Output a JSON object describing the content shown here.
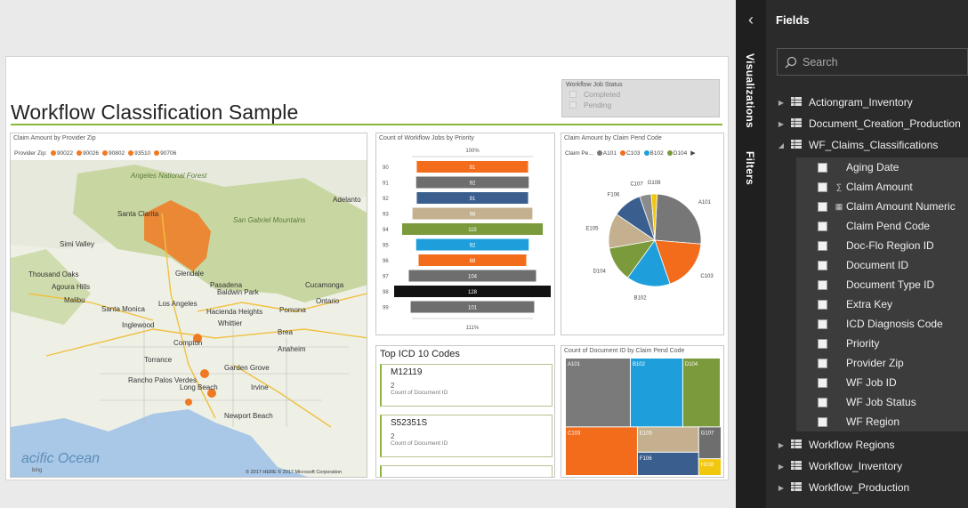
{
  "report": {
    "title": "Workflow Classification Sample",
    "slicer": {
      "title": "Workflow Job Status",
      "options": [
        "Completed",
        "Pending"
      ]
    }
  },
  "map_tile": {
    "title": "Claim Amount by Provider Zip",
    "legend_label": "Provider Zip",
    "legend_items": [
      "90022",
      "90026",
      "90802",
      "93510",
      "90706"
    ],
    "places": [
      "Adelanto",
      "Santa Clarita",
      "Simi Valley",
      "Thousand Oaks",
      "Agoura Hills",
      "Glendale",
      "Los Angeles",
      "Pasadena",
      "Baldwin Park",
      "Cucamonga",
      "Ontario",
      "Pomona",
      "Hacienda Heights",
      "Whittier",
      "Brea",
      "Compton",
      "Torrance",
      "Garden Grove",
      "Rancho Palos Verdes",
      "Long Beach",
      "Irvine",
      "Newport Beach",
      "Angeles National Forest",
      "San Gabriel Mountains",
      "Inglewood",
      "Santa Monica",
      "Malibu",
      "Anaheim"
    ],
    "ocean_label": "acific Ocean",
    "bing_label": "bing",
    "copyright": "© 2017 HERE  © 2017 Microsoft Corporation",
    "colors": {
      "accent": "#f07a23",
      "water": "#a9c7e6",
      "land": "#eef0e6",
      "forest": "#c8d7a2"
    }
  },
  "funnel_tile": {
    "title": "Count of Workflow Jobs by Priority",
    "top_label": "100%",
    "bottom_label": "111%"
  },
  "pie_tile": {
    "title": "Claim Amount by Claim Pend Code",
    "legend_label": "Claim Pe...",
    "legend_items": [
      {
        "name": "A101",
        "color": "#777777"
      },
      {
        "name": "C103",
        "color": "#f26c1c"
      },
      {
        "name": "B102",
        "color": "#1e9fdb"
      },
      {
        "name": "D104",
        "color": "#7a9a3b"
      }
    ]
  },
  "icd_tile": {
    "title": "Top ICD 10 Codes",
    "cards": [
      {
        "code": "M12119",
        "count": "2",
        "label": "Count of Document ID"
      },
      {
        "code": "S52351S",
        "count": "2",
        "label": "Count of Document ID"
      }
    ]
  },
  "treemap_tile": {
    "title": "Count of Document ID by Claim Pend Code"
  },
  "sidebar": {
    "visualizations_tab": "Visualizations",
    "filters_tab": "Filters",
    "fields_title": "Fields",
    "search_placeholder": "Search",
    "tables_before": [
      "Actiongram_Inventory",
      "Document_Creation_Production"
    ],
    "expanded_table": "WF_Claims_Classifications",
    "fields": [
      {
        "name": "Aging Date",
        "icon": ""
      },
      {
        "name": "Claim Amount",
        "icon": "sigma-icon"
      },
      {
        "name": "Claim Amount Numeric",
        "icon": "calculated-icon"
      },
      {
        "name": "Claim Pend Code",
        "icon": ""
      },
      {
        "name": "Doc-Flo Region ID",
        "icon": ""
      },
      {
        "name": "Document ID",
        "icon": ""
      },
      {
        "name": "Document Type ID",
        "icon": ""
      },
      {
        "name": "Extra Key",
        "icon": ""
      },
      {
        "name": "ICD Diagnosis Code",
        "icon": ""
      },
      {
        "name": "Priority",
        "icon": ""
      },
      {
        "name": "Provider Zip",
        "icon": ""
      },
      {
        "name": "WF Job ID",
        "icon": ""
      },
      {
        "name": "WF Job Status",
        "icon": ""
      },
      {
        "name": "WF Region",
        "icon": ""
      }
    ],
    "tables_after": [
      "Workflow Regions",
      "Workflow_Inventory",
      "Workflow_Production"
    ]
  },
  "chart_data": [
    {
      "type": "bar",
      "title": "Count of Workflow Jobs by Priority",
      "categories": [
        "90",
        "91",
        "92",
        "93",
        "94",
        "95",
        "96",
        "97",
        "98",
        "99"
      ],
      "values": [
        91,
        92,
        91,
        98,
        115,
        92,
        88,
        104,
        128,
        101
      ],
      "colors": [
        "#f26c1c",
        "#6e6e6e",
        "#3a5f8f",
        "#c4b08e",
        "#7a9a3b",
        "#1e9fdb",
        "#f26c1c",
        "#6e6e6e",
        "#111111",
        "#6e6e6e"
      ],
      "max": 128
    },
    {
      "type": "pie",
      "title": "Claim Amount by Claim Pend Code",
      "categories": [
        "A101",
        "C103",
        "B102",
        "D104",
        "E105",
        "F106",
        "C107",
        "G108"
      ],
      "values": [
        25,
        18,
        15,
        12,
        12,
        10,
        4,
        2
      ],
      "colors": [
        "#777777",
        "#f26c1c",
        "#1e9fdb",
        "#7a9a3b",
        "#c4b08e",
        "#3a5f8f",
        "#8b8b8b",
        "#f2c80f"
      ]
    },
    {
      "type": "treemap",
      "title": "Count of Document ID by Claim Pend Code",
      "categories": [
        "A101",
        "B102",
        "D104",
        "C103",
        "E105",
        "F106",
        "G107",
        "H108"
      ],
      "values": [
        26,
        21,
        15,
        20,
        9,
        8,
        4,
        2
      ],
      "colors": [
        "#7a7a7a",
        "#1e9fdb",
        "#7a9a3b",
        "#f26c1c",
        "#c4b08e",
        "#3a5f8f",
        "#6e6e6e",
        "#f2c80f"
      ]
    }
  ]
}
